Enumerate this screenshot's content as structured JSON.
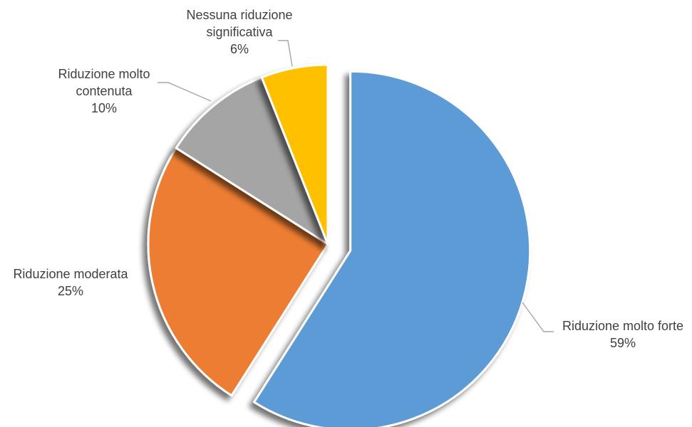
{
  "chart_data": {
    "type": "pie",
    "title": "",
    "start_angle_deg": 0,
    "direction": "clockwise",
    "exploded_slice_index": 0,
    "series": [
      {
        "name": "",
        "slices": [
          {
            "label_line1": "Riduzione molto forte",
            "label_line2": "",
            "value": 59,
            "percent": "59%",
            "color": "#5B9BD5"
          },
          {
            "label_line1": "Riduzione moderata",
            "label_line2": "",
            "value": 25,
            "percent": "25%",
            "color": "#ED7D31"
          },
          {
            "label_line1": "Riduzione molto",
            "label_line2": "contenuta",
            "value": 10,
            "percent": "10%",
            "color": "#A5A5A5"
          },
          {
            "label_line1": "Nessuna riduzione",
            "label_line2": "significativa",
            "value": 6,
            "percent": "6%",
            "color": "#FFC000"
          }
        ]
      }
    ],
    "legend": "none",
    "data_labels": "outside with leader lines"
  }
}
